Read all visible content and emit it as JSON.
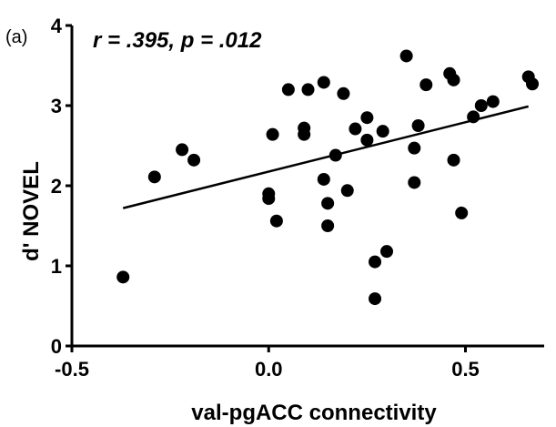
{
  "chart_data": {
    "type": "scatter",
    "panel_label": "(a)",
    "annotation": "r = .395, p = .012",
    "xlabel": "val-pgACC connectivity",
    "ylabel": "d' NOVEL",
    "xlim": [
      -0.5,
      0.7
    ],
    "ylim": [
      0,
      4
    ],
    "xticks": [
      -0.5,
      0.0,
      0.5
    ],
    "xtick_labels": [
      "-0.5",
      "0.0",
      "0.5"
    ],
    "yticks": [
      0,
      1,
      2,
      3,
      4
    ],
    "ytick_labels": [
      "0",
      "1",
      "2",
      "3",
      "4"
    ],
    "grid": false,
    "points": [
      {
        "x": -0.37,
        "y": 0.86
      },
      {
        "x": -0.29,
        "y": 2.11
      },
      {
        "x": -0.22,
        "y": 2.45
      },
      {
        "x": -0.19,
        "y": 2.32
      },
      {
        "x": 0.0,
        "y": 1.9
      },
      {
        "x": 0.0,
        "y": 1.84
      },
      {
        "x": 0.01,
        "y": 2.64
      },
      {
        "x": 0.02,
        "y": 1.56
      },
      {
        "x": 0.05,
        "y": 3.2
      },
      {
        "x": 0.09,
        "y": 2.72
      },
      {
        "x": 0.09,
        "y": 2.64
      },
      {
        "x": 0.1,
        "y": 3.2
      },
      {
        "x": 0.14,
        "y": 3.29
      },
      {
        "x": 0.14,
        "y": 2.08
      },
      {
        "x": 0.15,
        "y": 1.78
      },
      {
        "x": 0.15,
        "y": 1.5
      },
      {
        "x": 0.17,
        "y": 2.38
      },
      {
        "x": 0.19,
        "y": 3.15
      },
      {
        "x": 0.2,
        "y": 1.94
      },
      {
        "x": 0.22,
        "y": 2.71
      },
      {
        "x": 0.25,
        "y": 2.85
      },
      {
        "x": 0.25,
        "y": 2.57
      },
      {
        "x": 0.27,
        "y": 1.05
      },
      {
        "x": 0.27,
        "y": 0.59
      },
      {
        "x": 0.29,
        "y": 2.68
      },
      {
        "x": 0.3,
        "y": 1.18
      },
      {
        "x": 0.35,
        "y": 3.62
      },
      {
        "x": 0.37,
        "y": 2.47
      },
      {
        "x": 0.37,
        "y": 2.04
      },
      {
        "x": 0.38,
        "y": 2.75
      },
      {
        "x": 0.4,
        "y": 3.26
      },
      {
        "x": 0.46,
        "y": 3.4
      },
      {
        "x": 0.47,
        "y": 3.32
      },
      {
        "x": 0.47,
        "y": 2.32
      },
      {
        "x": 0.49,
        "y": 1.66
      },
      {
        "x": 0.52,
        "y": 2.86
      },
      {
        "x": 0.54,
        "y": 3.0
      },
      {
        "x": 0.57,
        "y": 3.05
      },
      {
        "x": 0.66,
        "y": 3.36
      },
      {
        "x": 0.67,
        "y": 3.27
      }
    ],
    "regression": {
      "x": [
        -0.37,
        0.66
      ],
      "y": [
        1.72,
        2.99
      ]
    }
  }
}
